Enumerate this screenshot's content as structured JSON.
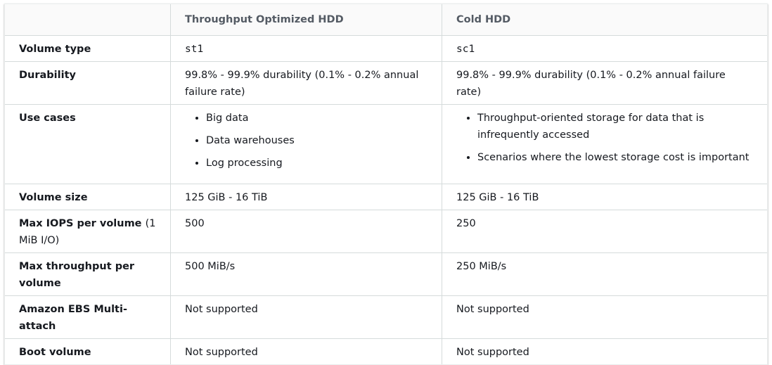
{
  "table": {
    "header": [
      "Throughput Optimized HDD",
      "Cold HDD"
    ],
    "rows": [
      {
        "label": "Volume type",
        "cells": [
          "st1",
          "sc1"
        ]
      },
      {
        "label": "Durability",
        "cells": [
          "99.8% - 99.9% durability (0.1% - 0.2% annual failure rate)",
          "99.8% - 99.9% durability (0.1% - 0.2% annual failure rate)"
        ]
      },
      {
        "label": "Use cases",
        "cells": [
          [
            "Big data",
            "Data warehouses",
            "Log processing"
          ],
          [
            "Throughput-oriented storage for data that is infrequently accessed",
            "Scenarios where the lowest storage cost is important"
          ]
        ]
      },
      {
        "label": "Volume size",
        "cells": [
          "125 GiB - 16 TiB",
          "125 GiB - 16 TiB"
        ]
      },
      {
        "label": "Max IOPS per volume",
        "label_note": "(1 MiB I/O)",
        "cells": [
          "500",
          "250"
        ]
      },
      {
        "label": "Max throughput per volume",
        "cells": [
          "500 MiB/s",
          "250 MiB/s"
        ]
      },
      {
        "label": "Amazon EBS Multi-attach",
        "cells": [
          "Not supported",
          "Not supported"
        ]
      },
      {
        "label": "Boot volume",
        "cells": [
          "Not supported",
          "Not supported"
        ]
      }
    ]
  }
}
